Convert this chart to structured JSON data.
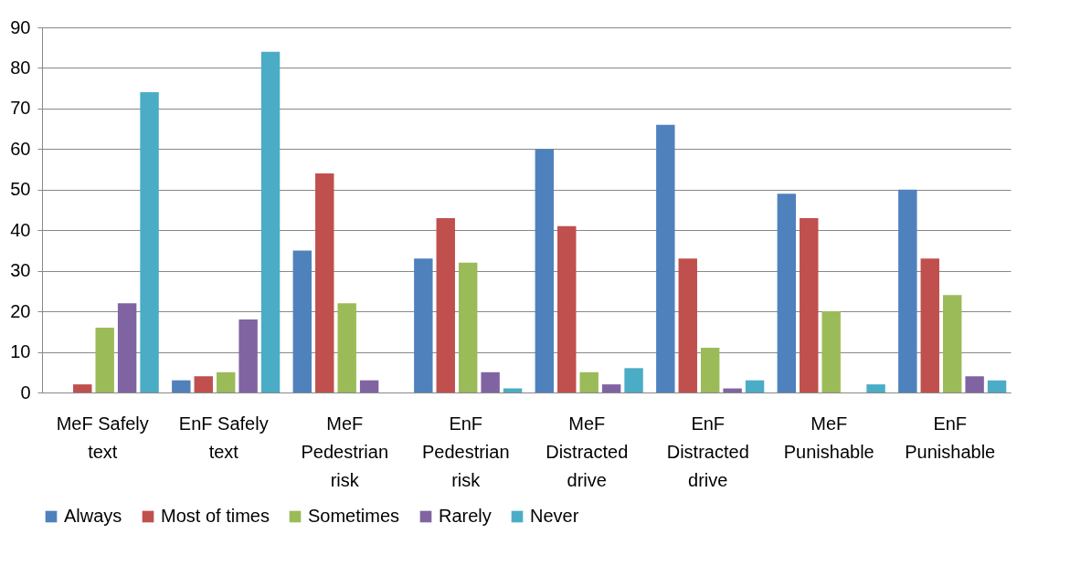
{
  "chart_data": {
    "type": "bar",
    "categories": [
      "MeF Safely text",
      "EnF Safely text",
      "MeF Pedestrian risk",
      "EnF Pedestrian risk",
      "MeF Distracted drive",
      "EnF Distracted drive",
      "MeF Punishable",
      "EnF Punishable"
    ],
    "series": [
      {
        "name": "Always",
        "color": "#4f81bd",
        "values": [
          0,
          3,
          35,
          33,
          60,
          66,
          49,
          50
        ]
      },
      {
        "name": "Most of times",
        "color": "#c0504d",
        "values": [
          2,
          4,
          54,
          43,
          41,
          33,
          43,
          33
        ]
      },
      {
        "name": "Sometimes",
        "color": "#9bbb59",
        "values": [
          16,
          5,
          22,
          32,
          5,
          11,
          20,
          24
        ]
      },
      {
        "name": "Rarely",
        "color": "#8064a2",
        "values": [
          22,
          18,
          3,
          5,
          2,
          1,
          0,
          4
        ]
      },
      {
        "name": "Never",
        "color": "#4bacc6",
        "values": [
          74,
          84,
          0,
          1,
          6,
          3,
          2,
          3
        ]
      }
    ],
    "ylim": [
      0,
      90
    ],
    "yticks": [
      0,
      10,
      20,
      30,
      40,
      50,
      60,
      70,
      80,
      90
    ],
    "grid": "y",
    "legend": "bottom"
  }
}
